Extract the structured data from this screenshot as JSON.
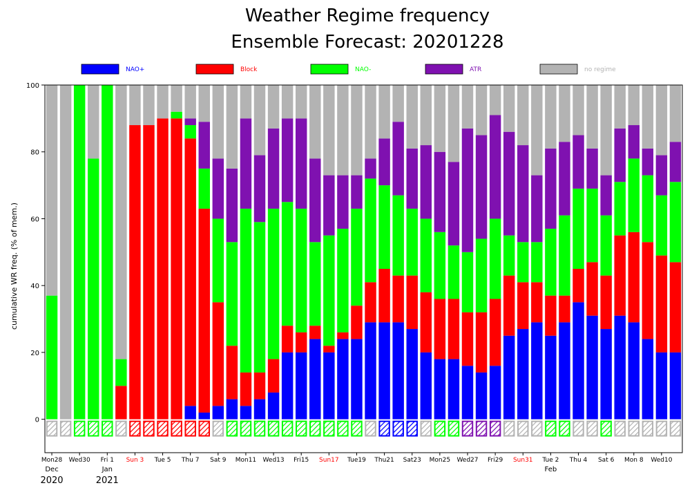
{
  "chart_data": {
    "type": "bar",
    "stacked": true,
    "title_line1": "Weather Regime frequency",
    "title_line2": "Ensemble Forecast: 20201228",
    "ylabel": "cumulative WR freq. (% of mem.)",
    "ylim": [
      -10,
      100
    ],
    "yticks": [
      0,
      20,
      40,
      60,
      80,
      100
    ],
    "legend_placement": "top",
    "colors": {
      "nao_plus": "#0000ff",
      "block": "#ff0000",
      "nao_minus": "#00ff00",
      "atr": "#7f11b0",
      "no_regime": "#b3b3b3",
      "weekend_label": "#ff0000"
    },
    "legend": [
      {
        "key": "nao_plus",
        "label": "NAO+",
        "text_color": "#0000ff"
      },
      {
        "key": "block",
        "label": "Block",
        "text_color": "#ff0000"
      },
      {
        "key": "nao_minus",
        "label": "NAO-",
        "text_color": "#00ff00"
      },
      {
        "key": "atr",
        "label": "ATR",
        "text_color": "#7f11b0"
      },
      {
        "key": "no_regime",
        "label": "no regime",
        "text_color": "#b3b3b3"
      }
    ],
    "series_order": [
      "nao_plus",
      "block",
      "nao_minus",
      "atr",
      "no_regime"
    ],
    "days": [
      {
        "nao_plus": 0,
        "block": 0,
        "nao_minus": 37,
        "atr": 0,
        "no_regime": 63,
        "dominant": "no_regime"
      },
      {
        "nao_plus": 0,
        "block": 0,
        "nao_minus": 0,
        "atr": 0,
        "no_regime": 100,
        "dominant": "no_regime"
      },
      {
        "nao_plus": 0,
        "block": 0,
        "nao_minus": 100,
        "atr": 0,
        "no_regime": 0,
        "dominant": "nao_minus"
      },
      {
        "nao_plus": 0,
        "block": 0,
        "nao_minus": 78,
        "atr": 0,
        "no_regime": 22,
        "dominant": "nao_minus"
      },
      {
        "nao_plus": 0,
        "block": 0,
        "nao_minus": 100,
        "atr": 0,
        "no_regime": 0,
        "dominant": "nao_minus"
      },
      {
        "nao_plus": 0,
        "block": 10,
        "nao_minus": 8,
        "atr": 0,
        "no_regime": 82,
        "dominant": "no_regime"
      },
      {
        "nao_plus": 0,
        "block": 88,
        "nao_minus": 0,
        "atr": 0,
        "no_regime": 12,
        "dominant": "block"
      },
      {
        "nao_plus": 0,
        "block": 88,
        "nao_minus": 0,
        "atr": 0,
        "no_regime": 12,
        "dominant": "block"
      },
      {
        "nao_plus": 0,
        "block": 90,
        "nao_minus": 0,
        "atr": 0,
        "no_regime": 10,
        "dominant": "block"
      },
      {
        "nao_plus": 0,
        "block": 90,
        "nao_minus": 2,
        "atr": 0,
        "no_regime": 8,
        "dominant": "block"
      },
      {
        "nao_plus": 4,
        "block": 80,
        "nao_minus": 4,
        "atr": 2,
        "no_regime": 10,
        "dominant": "block"
      },
      {
        "nao_plus": 2,
        "block": 61,
        "nao_minus": 12,
        "atr": 14,
        "no_regime": 11,
        "dominant": "block"
      },
      {
        "nao_plus": 4,
        "block": 31,
        "nao_minus": 25,
        "atr": 18,
        "no_regime": 22,
        "dominant": "no_regime"
      },
      {
        "nao_plus": 6,
        "block": 16,
        "nao_minus": 31,
        "atr": 22,
        "no_regime": 25,
        "dominant": "nao_minus"
      },
      {
        "nao_plus": 4,
        "block": 10,
        "nao_minus": 49,
        "atr": 27,
        "no_regime": 10,
        "dominant": "nao_minus"
      },
      {
        "nao_plus": 6,
        "block": 8,
        "nao_minus": 45,
        "atr": 20,
        "no_regime": 21,
        "dominant": "nao_minus"
      },
      {
        "nao_plus": 8,
        "block": 10,
        "nao_minus": 45,
        "atr": 24,
        "no_regime": 13,
        "dominant": "nao_minus"
      },
      {
        "nao_plus": 20,
        "block": 8,
        "nao_minus": 37,
        "atr": 25,
        "no_regime": 10,
        "dominant": "nao_minus"
      },
      {
        "nao_plus": 20,
        "block": 6,
        "nao_minus": 37,
        "atr": 27,
        "no_regime": 10,
        "dominant": "nao_minus"
      },
      {
        "nao_plus": 24,
        "block": 4,
        "nao_minus": 25,
        "atr": 25,
        "no_regime": 22,
        "dominant": "nao_minus"
      },
      {
        "nao_plus": 20,
        "block": 2,
        "nao_minus": 33,
        "atr": 18,
        "no_regime": 27,
        "dominant": "nao_minus"
      },
      {
        "nao_plus": 24,
        "block": 2,
        "nao_minus": 31,
        "atr": 16,
        "no_regime": 27,
        "dominant": "nao_minus"
      },
      {
        "nao_plus": 24,
        "block": 10,
        "nao_minus": 29,
        "atr": 10,
        "no_regime": 27,
        "dominant": "nao_minus"
      },
      {
        "nao_plus": 29,
        "block": 12,
        "nao_minus": 31,
        "atr": 6,
        "no_regime": 22,
        "dominant": "no_regime"
      },
      {
        "nao_plus": 29,
        "block": 16,
        "nao_minus": 25,
        "atr": 14,
        "no_regime": 16,
        "dominant": "nao_plus"
      },
      {
        "nao_plus": 29,
        "block": 14,
        "nao_minus": 24,
        "atr": 22,
        "no_regime": 11,
        "dominant": "nao_plus"
      },
      {
        "nao_plus": 27,
        "block": 16,
        "nao_minus": 20,
        "atr": 18,
        "no_regime": 19,
        "dominant": "nao_plus"
      },
      {
        "nao_plus": 20,
        "block": 18,
        "nao_minus": 22,
        "atr": 22,
        "no_regime": 18,
        "dominant": "no_regime"
      },
      {
        "nao_plus": 18,
        "block": 18,
        "nao_minus": 20,
        "atr": 24,
        "no_regime": 20,
        "dominant": "nao_minus"
      },
      {
        "nao_plus": 18,
        "block": 18,
        "nao_minus": 16,
        "atr": 25,
        "no_regime": 23,
        "dominant": "nao_minus"
      },
      {
        "nao_plus": 16,
        "block": 16,
        "nao_minus": 18,
        "atr": 37,
        "no_regime": 13,
        "dominant": "atr"
      },
      {
        "nao_plus": 14,
        "block": 18,
        "nao_minus": 22,
        "atr": 31,
        "no_regime": 15,
        "dominant": "atr"
      },
      {
        "nao_plus": 16,
        "block": 20,
        "nao_minus": 24,
        "atr": 31,
        "no_regime": 9,
        "dominant": "atr"
      },
      {
        "nao_plus": 25,
        "block": 18,
        "nao_minus": 12,
        "atr": 31,
        "no_regime": 14,
        "dominant": "no_regime"
      },
      {
        "nao_plus": 27,
        "block": 14,
        "nao_minus": 12,
        "atr": 29,
        "no_regime": 18,
        "dominant": "no_regime"
      },
      {
        "nao_plus": 29,
        "block": 12,
        "nao_minus": 12,
        "atr": 20,
        "no_regime": 27,
        "dominant": "no_regime"
      },
      {
        "nao_plus": 25,
        "block": 12,
        "nao_minus": 20,
        "atr": 24,
        "no_regime": 19,
        "dominant": "nao_minus"
      },
      {
        "nao_plus": 29,
        "block": 8,
        "nao_minus": 24,
        "atr": 22,
        "no_regime": 17,
        "dominant": "nao_minus"
      },
      {
        "nao_plus": 35,
        "block": 10,
        "nao_minus": 24,
        "atr": 16,
        "no_regime": 15,
        "dominant": "no_regime"
      },
      {
        "nao_plus": 31,
        "block": 16,
        "nao_minus": 22,
        "atr": 12,
        "no_regime": 19,
        "dominant": "no_regime"
      },
      {
        "nao_plus": 27,
        "block": 16,
        "nao_minus": 18,
        "atr": 12,
        "no_regime": 27,
        "dominant": "nao_minus"
      },
      {
        "nao_plus": 31,
        "block": 24,
        "nao_minus": 16,
        "atr": 16,
        "no_regime": 13,
        "dominant": "no_regime"
      },
      {
        "nao_plus": 29,
        "block": 27,
        "nao_minus": 22,
        "atr": 10,
        "no_regime": 12,
        "dominant": "no_regime"
      },
      {
        "nao_plus": 24,
        "block": 29,
        "nao_minus": 20,
        "atr": 8,
        "no_regime": 19,
        "dominant": "no_regime"
      },
      {
        "nao_plus": 20,
        "block": 29,
        "nao_minus": 18,
        "atr": 12,
        "no_regime": 21,
        "dominant": "no_regime"
      },
      {
        "nao_plus": 20,
        "block": 27,
        "nao_minus": 24,
        "atr": 12,
        "no_regime": 17,
        "dominant": "no_regime"
      }
    ],
    "date_labels": [
      {
        "index": 0,
        "label": "Mon28",
        "weekend": false
      },
      {
        "index": 2,
        "label": "Wed30",
        "weekend": false
      },
      {
        "index": 4,
        "label": "Fri 1",
        "weekend": false
      },
      {
        "index": 6,
        "label": "Sun 3",
        "weekend": true
      },
      {
        "index": 8,
        "label": "Tue 5",
        "weekend": false
      },
      {
        "index": 10,
        "label": "Thu 7",
        "weekend": false
      },
      {
        "index": 12,
        "label": "Sat 9",
        "weekend": false
      },
      {
        "index": 14,
        "label": "Mon11",
        "weekend": false
      },
      {
        "index": 16,
        "label": "Wed13",
        "weekend": false
      },
      {
        "index": 18,
        "label": "Fri15",
        "weekend": false
      },
      {
        "index": 20,
        "label": "Sun17",
        "weekend": true
      },
      {
        "index": 22,
        "label": "Tue19",
        "weekend": false
      },
      {
        "index": 24,
        "label": "Thu21",
        "weekend": false
      },
      {
        "index": 26,
        "label": "Sat23",
        "weekend": false
      },
      {
        "index": 28,
        "label": "Mon25",
        "weekend": false
      },
      {
        "index": 30,
        "label": "Wed27",
        "weekend": false
      },
      {
        "index": 32,
        "label": "Fri29",
        "weekend": false
      },
      {
        "index": 34,
        "label": "Sun31",
        "weekend": true
      },
      {
        "index": 36,
        "label": "Tue 2",
        "weekend": false
      },
      {
        "index": 38,
        "label": "Thu 4",
        "weekend": false
      },
      {
        "index": 40,
        "label": "Sat 6",
        "weekend": false
      },
      {
        "index": 42,
        "label": "Mon 8",
        "weekend": false
      },
      {
        "index": 44,
        "label": "Wed10",
        "weekend": false
      }
    ],
    "month_labels": [
      {
        "index": 0,
        "label": "Dec"
      },
      {
        "index": 4,
        "label": "Jan"
      },
      {
        "index": 36,
        "label": "Feb"
      }
    ],
    "year_labels": [
      {
        "index": 0,
        "label": "2020"
      },
      {
        "index": 4,
        "label": "2021"
      }
    ]
  }
}
